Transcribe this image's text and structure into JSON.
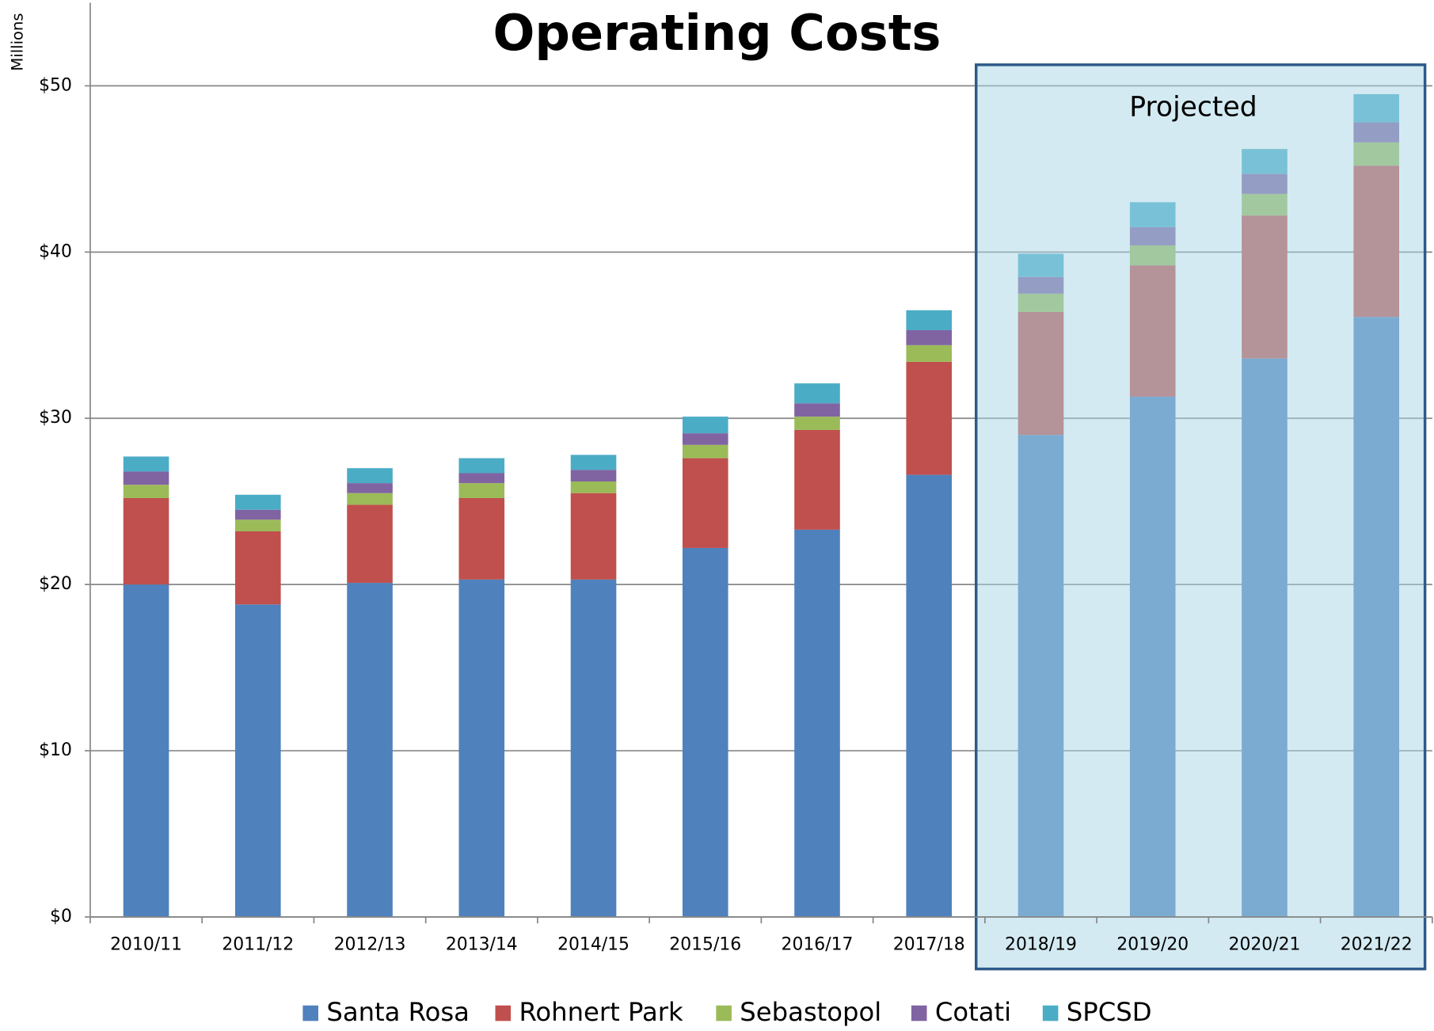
{
  "chart_data": {
    "type": "stacked_bar",
    "title": "Operating Costs",
    "y_label": "Millions",
    "annotation": "Projected",
    "categories": [
      "2010/11",
      "2011/12",
      "2012/13",
      "2013/14",
      "2014/15",
      "2015/16",
      "2016/17",
      "2017/18",
      "2018/19",
      "2019/20",
      "2020/21",
      "2021/22"
    ],
    "series": [
      {
        "name": "Santa Rosa",
        "color": "#4f81bd",
        "values": [
          20.0,
          18.8,
          20.1,
          20.3,
          20.3,
          22.2,
          23.3,
          26.6,
          29.0,
          31.3,
          33.6,
          36.1
        ]
      },
      {
        "name": "Rohnert Park",
        "color": "#c0504d",
        "values": [
          5.2,
          4.4,
          4.7,
          4.9,
          5.2,
          5.4,
          6.0,
          6.8,
          7.4,
          7.9,
          8.6,
          9.1
        ]
      },
      {
        "name": "Sebastopol",
        "color": "#9bbb59",
        "values": [
          0.8,
          0.7,
          0.7,
          0.9,
          0.7,
          0.8,
          0.8,
          1.0,
          1.1,
          1.2,
          1.3,
          1.4
        ]
      },
      {
        "name": "Cotati",
        "color": "#8064a2",
        "values": [
          0.8,
          0.6,
          0.6,
          0.6,
          0.7,
          0.7,
          0.8,
          0.9,
          1.0,
          1.1,
          1.2,
          1.2
        ]
      },
      {
        "name": "SPCSD",
        "color": "#4bacc6",
        "values": [
          0.9,
          0.9,
          0.9,
          0.9,
          0.9,
          1.0,
          1.2,
          1.2,
          1.4,
          1.5,
          1.5,
          1.7
        ]
      }
    ],
    "ylim": [
      0,
      55
    ],
    "yticks": [
      {
        "value": 0,
        "label": "$0"
      },
      {
        "value": 10,
        "label": "$10"
      },
      {
        "value": 20,
        "label": "$20"
      },
      {
        "value": 30,
        "label": "$30"
      },
      {
        "value": 40,
        "label": "$40"
      },
      {
        "value": 50,
        "label": "$50"
      }
    ],
    "grid": true,
    "legend": "bottom"
  }
}
